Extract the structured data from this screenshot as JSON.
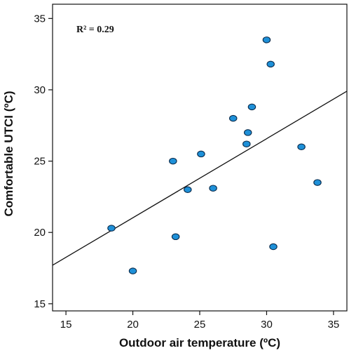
{
  "chart_data": {
    "type": "scatter",
    "xlabel": "Outdoor air temperature  (ºC)",
    "ylabel": "Comfortable UTCI (ºC)",
    "xlim": [
      14,
      36
    ],
    "ylim": [
      14.5,
      36
    ],
    "xticks": [
      15,
      20,
      25,
      30,
      35
    ],
    "yticks": [
      15,
      20,
      25,
      30,
      35
    ],
    "grid": false,
    "annotation": "R² = 0.29",
    "point_color": "#1e90d8",
    "points": [
      {
        "x": 18.4,
        "y": 20.3
      },
      {
        "x": 20.0,
        "y": 17.3
      },
      {
        "x": 23.0,
        "y": 25.0
      },
      {
        "x": 23.2,
        "y": 19.7
      },
      {
        "x": 24.1,
        "y": 23.0
      },
      {
        "x": 25.1,
        "y": 25.5
      },
      {
        "x": 26.0,
        "y": 23.1
      },
      {
        "x": 27.5,
        "y": 28.0
      },
      {
        "x": 28.5,
        "y": 26.2
      },
      {
        "x": 28.6,
        "y": 27.0
      },
      {
        "x": 28.9,
        "y": 28.8
      },
      {
        "x": 30.0,
        "y": 33.5
      },
      {
        "x": 30.3,
        "y": 31.8
      },
      {
        "x": 30.5,
        "y": 19.0
      },
      {
        "x": 32.6,
        "y": 26.0
      },
      {
        "x": 33.8,
        "y": 23.5
      }
    ],
    "fit_line": {
      "x": [
        14,
        36
      ],
      "y": [
        17.7,
        29.9
      ]
    }
  }
}
